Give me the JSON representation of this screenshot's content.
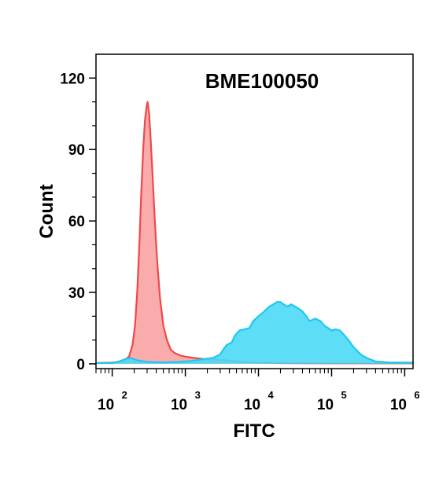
{
  "chart_data": {
    "type": "area",
    "title": "BME100050",
    "xlabel": "FITC",
    "ylabel": "Count",
    "x_scale": "log",
    "xlim": [
      60,
      1300000
    ],
    "ylim": [
      -2,
      130
    ],
    "y_ticks": [
      {
        "value": 0,
        "label": "0"
      },
      {
        "value": 30,
        "label": "30"
      },
      {
        "value": 60,
        "label": "60"
      },
      {
        "value": 90,
        "label": "90"
      },
      {
        "value": 120,
        "label": "120"
      }
    ],
    "x_ticks": [
      {
        "value": 100,
        "base": "10",
        "exp": "2"
      },
      {
        "value": 1000,
        "base": "10",
        "exp": "3"
      },
      {
        "value": 10000,
        "base": "10",
        "exp": "4"
      },
      {
        "value": 100000,
        "base": "10",
        "exp": "5"
      },
      {
        "value": 1000000,
        "base": "10",
        "exp": "6"
      }
    ],
    "grid": false,
    "legend": "none",
    "series": [
      {
        "color_fill": "#f9a3a3",
        "color_line": "#f04848",
        "points": [
          [
            60,
            0.3
          ],
          [
            100,
            0.5
          ],
          [
            140,
            1
          ],
          [
            170,
            3
          ],
          [
            190,
            8
          ],
          [
            205,
            16
          ],
          [
            220,
            30
          ],
          [
            235,
            50
          ],
          [
            250,
            72
          ],
          [
            265,
            90
          ],
          [
            280,
            102
          ],
          [
            295,
            108
          ],
          [
            305,
            110
          ],
          [
            320,
            105
          ],
          [
            335,
            95
          ],
          [
            355,
            80
          ],
          [
            380,
            62
          ],
          [
            410,
            44
          ],
          [
            450,
            28
          ],
          [
            500,
            16
          ],
          [
            560,
            10
          ],
          [
            630,
            6
          ],
          [
            720,
            4.5
          ],
          [
            850,
            3.5
          ],
          [
            1000,
            3
          ],
          [
            1300,
            2.5
          ],
          [
            1800,
            2
          ],
          [
            2500,
            1.8
          ],
          [
            3500,
            1.5
          ],
          [
            5000,
            1
          ],
          [
            8000,
            0.6
          ],
          [
            20000,
            0.3
          ],
          [
            100000,
            0.2
          ],
          [
            1300000,
            0.2
          ]
        ]
      },
      {
        "color_fill": "#4dd9f5",
        "color_line": "#1ec8f0",
        "points": [
          [
            60,
            0.3
          ],
          [
            100,
            0.3
          ],
          [
            130,
            1.2
          ],
          [
            150,
            2
          ],
          [
            180,
            2.5
          ],
          [
            220,
            1.5
          ],
          [
            300,
            0.8
          ],
          [
            500,
            0.6
          ],
          [
            800,
            0.8
          ],
          [
            1200,
            1.2
          ],
          [
            1800,
            2
          ],
          [
            2400,
            2.5
          ],
          [
            3000,
            4
          ],
          [
            3300,
            6
          ],
          [
            3700,
            8
          ],
          [
            4300,
            9
          ],
          [
            4800,
            12
          ],
          [
            5500,
            14
          ],
          [
            6500,
            14.5
          ],
          [
            7500,
            15
          ],
          [
            8500,
            18
          ],
          [
            10000,
            20
          ],
          [
            12000,
            22
          ],
          [
            14000,
            24
          ],
          [
            16000,
            25
          ],
          [
            18000,
            26
          ],
          [
            20000,
            26
          ],
          [
            22000,
            25
          ],
          [
            25000,
            24
          ],
          [
            28000,
            25
          ],
          [
            32000,
            24
          ],
          [
            36000,
            23
          ],
          [
            40000,
            22
          ],
          [
            45000,
            20
          ],
          [
            50000,
            18
          ],
          [
            55000,
            18.5
          ],
          [
            60000,
            19
          ],
          [
            70000,
            18
          ],
          [
            80000,
            16
          ],
          [
            90000,
            15
          ],
          [
            100000,
            14
          ],
          [
            115000,
            14.5
          ],
          [
            130000,
            14
          ],
          [
            150000,
            12
          ],
          [
            170000,
            10
          ],
          [
            200000,
            7
          ],
          [
            250000,
            4
          ],
          [
            300000,
            2.5
          ],
          [
            400000,
            1
          ],
          [
            600000,
            0.6
          ],
          [
            1300000,
            0.5
          ]
        ]
      }
    ]
  }
}
